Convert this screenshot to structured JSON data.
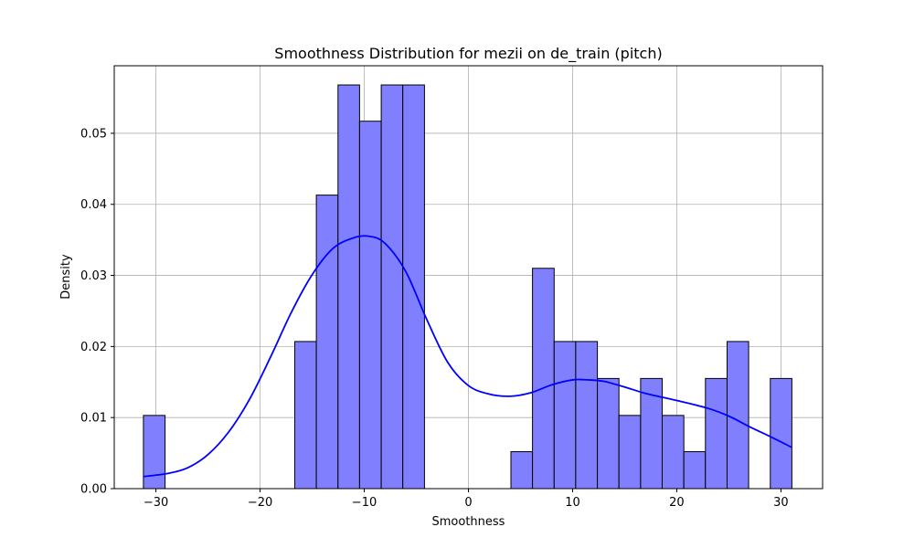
{
  "chart_data": {
    "type": "bar",
    "title": "Smoothness Distribution for mezii on de_train (pitch)",
    "xlabel": "Smoothness",
    "ylabel": "Density",
    "xlim": [
      -34,
      34
    ],
    "ylim": [
      0,
      0.0595
    ],
    "x_ticks": [
      -30,
      -20,
      -10,
      0,
      10,
      20,
      30
    ],
    "y_ticks": [
      0.0,
      0.01,
      0.02,
      0.03,
      0.04,
      0.05
    ],
    "grid": true,
    "bin_edges": [
      -31.2,
      -29.12,
      -27.05,
      -24.97,
      -22.9,
      -20.82,
      -18.75,
      -16.67,
      -14.6,
      -12.52,
      -10.45,
      -8.37,
      -6.3,
      -4.22,
      -2.15,
      -0.07,
      2.0,
      4.08,
      6.15,
      8.23,
      10.3,
      12.38,
      14.45,
      16.53,
      18.6,
      20.68,
      22.75,
      24.83,
      26.9,
      28.98,
      31.05
    ],
    "values": [
      0.0103,
      0,
      0,
      0,
      0,
      0,
      0,
      0.0207,
      0.0413,
      0.0568,
      0.0517,
      0.0568,
      0.0568,
      0,
      0,
      0,
      0,
      0.0052,
      0.031,
      0.0207,
      0.0207,
      0.0155,
      0.0103,
      0.0155,
      0.0103,
      0.0052,
      0.0155,
      0.0207,
      0,
      0.0155
    ],
    "bar_color": "#8080ff",
    "bar_edge_color": "#000000",
    "kde": {
      "color": "#0000ff",
      "x": [
        -31.2,
        -29,
        -27,
        -25,
        -23,
        -21,
        -19,
        -17,
        -15,
        -13,
        -11,
        -9.5,
        -8,
        -6,
        -4,
        -2,
        0,
        2,
        4,
        6,
        8,
        10,
        11.5,
        13,
        15,
        17,
        20,
        23,
        25,
        27,
        29,
        31.05
      ],
      "y": [
        0.0017,
        0.0021,
        0.0029,
        0.0048,
        0.008,
        0.0126,
        0.0185,
        0.0248,
        0.0301,
        0.0338,
        0.0353,
        0.0355,
        0.0345,
        0.0305,
        0.0238,
        0.0178,
        0.0145,
        0.0133,
        0.013,
        0.0135,
        0.0146,
        0.0153,
        0.0153,
        0.0151,
        0.0143,
        0.0134,
        0.0124,
        0.0113,
        0.0102,
        0.0087,
        0.0073,
        0.0058
      ]
    }
  }
}
